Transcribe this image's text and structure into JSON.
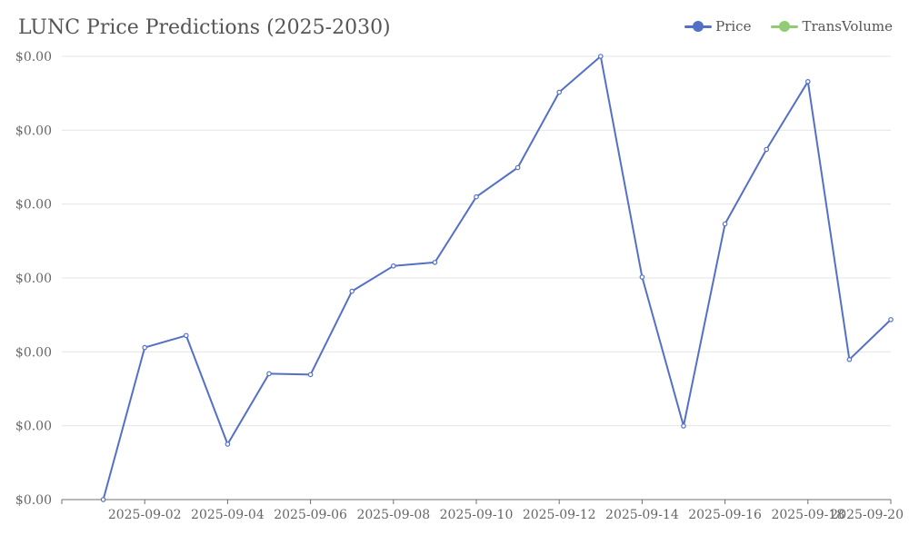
{
  "chart_data": {
    "type": "line",
    "title": "LUNC Price Predictions (2025-2030)",
    "x_tick_labels": [
      "2025-09-02",
      "2025-09-04",
      "2025-09-06",
      "2025-09-08",
      "2025-09-10",
      "2025-09-12",
      "2025-09-14",
      "2025-09-16",
      "2025-09-18",
      "2025-09-20"
    ],
    "y_tick_labels": [
      "$0.00",
      "$0.00",
      "$0.00",
      "$0.00",
      "$0.00",
      "$0.00",
      "$0.00"
    ],
    "xlim": [
      "2025-08-31",
      "2025-09-20"
    ],
    "legend_position": "top-right",
    "grid": "horizontal",
    "series": [
      {
        "name": "Price",
        "color": "#5470c6",
        "x": [
          "2025-09-01",
          "2025-09-02",
          "2025-09-03",
          "2025-09-04",
          "2025-09-05",
          "2025-09-06",
          "2025-09-07",
          "2025-09-08",
          "2025-09-09",
          "2025-09-10",
          "2025-09-11",
          "2025-09-12",
          "2025-09-13",
          "2025-09-14",
          "2025-09-15",
          "2025-09-16",
          "2025-09-17",
          "2025-09-18",
          "2025-09-19",
          "2025-09-20"
        ],
        "values": [
          0,
          0.343,
          0.37,
          0.125,
          0.284,
          0.282,
          0.47,
          0.527,
          0.535,
          0.683,
          0.749,
          0.919,
          1.0,
          0.502,
          0.166,
          0.622,
          0.79,
          0.943,
          0.316,
          0.406
        ]
      },
      {
        "name": "TransVolume",
        "color": "#91cc75",
        "x": [],
        "values": []
      }
    ]
  }
}
